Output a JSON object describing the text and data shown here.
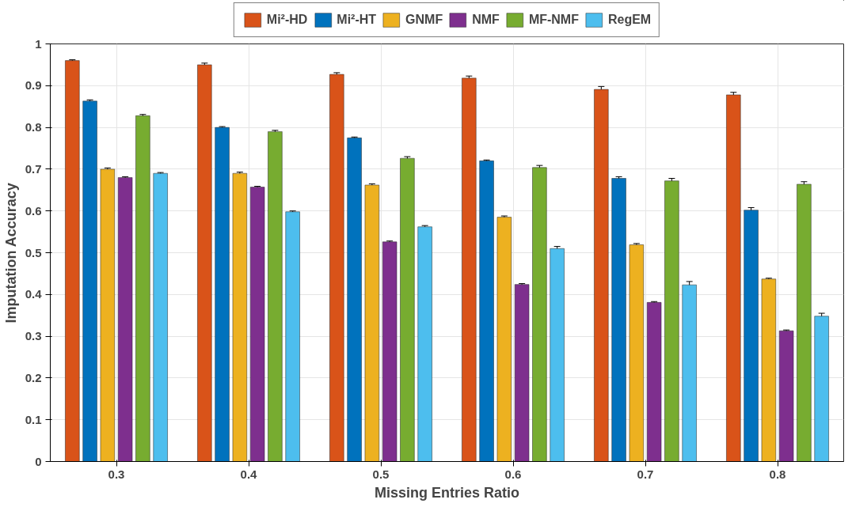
{
  "chart_data": {
    "type": "bar",
    "xlabel": "Missing Entries Ratio",
    "ylabel": "Imputation Accuracy",
    "categories": [
      "0.3",
      "0.4",
      "0.5",
      "0.6",
      "0.7",
      "0.8"
    ],
    "series": [
      {
        "name": "Mi²-HD",
        "color": "#d95319",
        "values": [
          0.96,
          0.95,
          0.927,
          0.918,
          0.891,
          0.878
        ],
        "errors": [
          0.002,
          0.004,
          0.004,
          0.005,
          0.007,
          0.006
        ]
      },
      {
        "name": "Mi²-HT",
        "color": "#0072bd",
        "values": [
          0.863,
          0.8,
          0.775,
          0.72,
          0.678,
          0.602
        ],
        "errors": [
          0.003,
          0.002,
          0.002,
          0.002,
          0.004,
          0.006
        ]
      },
      {
        "name": "GNMF",
        "color": "#edb120",
        "values": [
          0.7,
          0.69,
          0.662,
          0.585,
          0.519,
          0.437
        ],
        "errors": [
          0.003,
          0.003,
          0.003,
          0.003,
          0.003,
          0.002
        ]
      },
      {
        "name": "NMF",
        "color": "#7e2f8e",
        "values": [
          0.68,
          0.657,
          0.526,
          0.424,
          0.381,
          0.313
        ],
        "errors": [
          0.002,
          0.002,
          0.002,
          0.002,
          0.002,
          0.002
        ]
      },
      {
        "name": "MF-NMF",
        "color": "#77ac30",
        "values": [
          0.828,
          0.79,
          0.726,
          0.704,
          0.672,
          0.664
        ],
        "errors": [
          0.003,
          0.003,
          0.004,
          0.005,
          0.006,
          0.006
        ]
      },
      {
        "name": "RegEM",
        "color": "#4dbeee",
        "values": [
          0.69,
          0.598,
          0.562,
          0.51,
          0.423,
          0.348
        ],
        "errors": [
          0.002,
          0.002,
          0.003,
          0.005,
          0.008,
          0.007
        ]
      }
    ],
    "ylim": [
      0,
      1
    ],
    "yticks": [
      0,
      0.1,
      0.2,
      0.3,
      0.4,
      0.5,
      0.6,
      0.7,
      0.8,
      0.9,
      1
    ],
    "grid": true,
    "legend": "top"
  }
}
